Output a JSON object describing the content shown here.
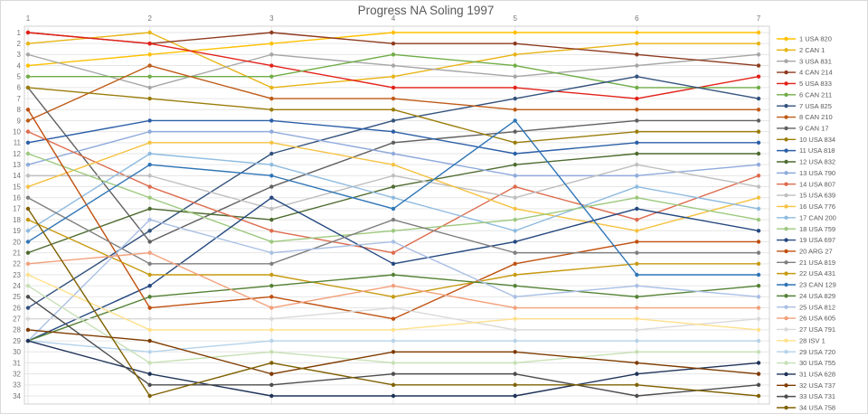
{
  "chart_data": {
    "type": "line",
    "subtype": "bump-rank-progress",
    "title": "Progress NA Soling 1997",
    "xlabel": "",
    "ylabel": "",
    "x": [
      1,
      2,
      3,
      4,
      5,
      6,
      7
    ],
    "x_axis_position": "top",
    "y_axis": {
      "ticks": [
        1,
        2,
        3,
        4,
        5,
        6,
        7,
        8,
        9,
        10,
        11,
        12,
        13,
        14,
        15,
        16,
        17,
        18,
        19,
        20,
        21,
        22,
        23,
        24,
        25,
        26,
        27,
        28,
        29,
        30,
        31,
        32,
        33,
        34
      ],
      "direction": "rank-1-at-top"
    },
    "grid": true,
    "legend_position": "right",
    "colors": {
      "grid": "#e6e6e6",
      "border": "#d0d0d0",
      "axis_text": "#757575",
      "title_text": "#595959",
      "legend_text": "#595959"
    },
    "series": [
      {
        "name": "1 USA 820",
        "color": "#FFC000",
        "ranks": [
          4,
          3,
          2,
          1,
          1,
          1,
          1
        ]
      },
      {
        "name": "2 CAN 1",
        "color": "#E8B417",
        "ranks": [
          2,
          1,
          6,
          5,
          3,
          2,
          2
        ]
      },
      {
        "name": "3 USA 831",
        "color": "#A6A6A6",
        "ranks": [
          3,
          6,
          3,
          4,
          5,
          4,
          3
        ]
      },
      {
        "name": "4 CAN 214",
        "color": "#8E3B1F",
        "ranks": [
          1,
          2,
          1,
          2,
          2,
          3,
          4
        ]
      },
      {
        "name": "5 USA 833",
        "color": "#E32119",
        "ranks": [
          1,
          2,
          4,
          6,
          6,
          7,
          5
        ]
      },
      {
        "name": "6 CAN 211",
        "color": "#70AD47",
        "ranks": [
          5,
          5,
          5,
          3,
          4,
          6,
          6
        ]
      },
      {
        "name": "7 USA 825",
        "color": "#33527D",
        "ranks": [
          26,
          19,
          12,
          9,
          7,
          5,
          7
        ]
      },
      {
        "name": "8 CAN 210",
        "color": "#BF5B17",
        "ranks": [
          9,
          4,
          7,
          7,
          8,
          8,
          8
        ]
      },
      {
        "name": "9 CAN 17",
        "color": "#606060",
        "ranks": [
          6,
          20,
          15,
          11,
          10,
          9,
          9
        ]
      },
      {
        "name": "10 USA 834",
        "color": "#9A7D0B",
        "ranks": [
          6,
          7,
          8,
          8,
          11,
          10,
          10
        ]
      },
      {
        "name": "11 USA 818",
        "color": "#2C5FA8",
        "ranks": [
          11,
          9,
          9,
          10,
          12,
          11,
          11
        ]
      },
      {
        "name": "12 USA 832",
        "color": "#4E6B30",
        "ranks": [
          21,
          17,
          18,
          15,
          13,
          12,
          12
        ]
      },
      {
        "name": "13 USA 790",
        "color": "#8FAADC",
        "ranks": [
          13,
          10,
          10,
          12,
          14,
          14,
          13
        ]
      },
      {
        "name": "14 USA 807",
        "color": "#DD6B4D",
        "ranks": [
          10,
          15,
          19,
          21,
          15,
          18,
          14
        ]
      },
      {
        "name": "15 USA 639",
        "color": "#BFBFBF",
        "ranks": [
          14,
          14,
          17,
          14,
          16,
          13,
          15
        ]
      },
      {
        "name": "16 USA 776",
        "color": "#F5C242",
        "ranks": [
          15,
          11,
          11,
          13,
          17,
          19,
          16
        ]
      },
      {
        "name": "17 CAN 200",
        "color": "#8FBBE0",
        "ranks": [
          19,
          12,
          13,
          16,
          19,
          15,
          17
        ]
      },
      {
        "name": "18 USA 759",
        "color": "#9DC97E",
        "ranks": [
          12,
          16,
          20,
          19,
          18,
          16,
          18
        ]
      },
      {
        "name": "19 USA 697",
        "color": "#24477F",
        "ranks": [
          29,
          24,
          16,
          22,
          20,
          17,
          19
        ]
      },
      {
        "name": "20 ARG 27",
        "color": "#C0500F",
        "ranks": [
          8,
          26,
          25,
          27,
          22,
          20,
          20
        ]
      },
      {
        "name": "21 USA 819",
        "color": "#7F7F7F",
        "ranks": [
          16,
          22,
          22,
          18,
          21,
          21,
          21
        ]
      },
      {
        "name": "22 USA 431",
        "color": "#C79A11",
        "ranks": [
          18,
          23,
          23,
          25,
          23,
          22,
          22
        ]
      },
      {
        "name": "23 CAN 129",
        "color": "#2E75B6",
        "ranks": [
          20,
          13,
          14,
          17,
          9,
          23,
          23
        ]
      },
      {
        "name": "24 USA 829",
        "color": "#548235",
        "ranks": [
          29,
          25,
          24,
          23,
          24,
          25,
          24
        ]
      },
      {
        "name": "25 USA 812",
        "color": "#A9BFE4",
        "ranks": [
          29,
          18,
          21,
          20,
          25,
          24,
          25
        ]
      },
      {
        "name": "26 USA 605",
        "color": "#F2A07B",
        "ranks": [
          22,
          21,
          26,
          24,
          26,
          26,
          26
        ]
      },
      {
        "name": "27 USA 791",
        "color": "#D9D9D9",
        "ranks": [
          27,
          27,
          27,
          26,
          28,
          28,
          27
        ]
      },
      {
        "name": "28 ISV 1",
        "color": "#FFE08A",
        "ranks": [
          23,
          28,
          28,
          28,
          27,
          27,
          28
        ]
      },
      {
        "name": "29 USA 720",
        "color": "#B5D3EA",
        "ranks": [
          29,
          30,
          29,
          29,
          29,
          29,
          29
        ]
      },
      {
        "name": "30 USA 755",
        "color": "#C6E0B4",
        "ranks": [
          24,
          31,
          30,
          31,
          31,
          30,
          30
        ]
      },
      {
        "name": "31 USA 628",
        "color": "#1F3358",
        "ranks": [
          29,
          32,
          34,
          34,
          34,
          32,
          31
        ]
      },
      {
        "name": "32 USA 737",
        "color": "#7F3B00",
        "ranks": [
          28,
          29,
          32,
          30,
          30,
          31,
          32
        ]
      },
      {
        "name": "33 USA 731",
        "color": "#4D4D4D",
        "ranks": [
          25,
          33,
          33,
          32,
          32,
          34,
          33
        ]
      },
      {
        "name": "34 USA 758",
        "color": "#7F6000",
        "ranks": [
          17,
          34,
          31,
          33,
          33,
          33,
          34
        ]
      }
    ]
  }
}
